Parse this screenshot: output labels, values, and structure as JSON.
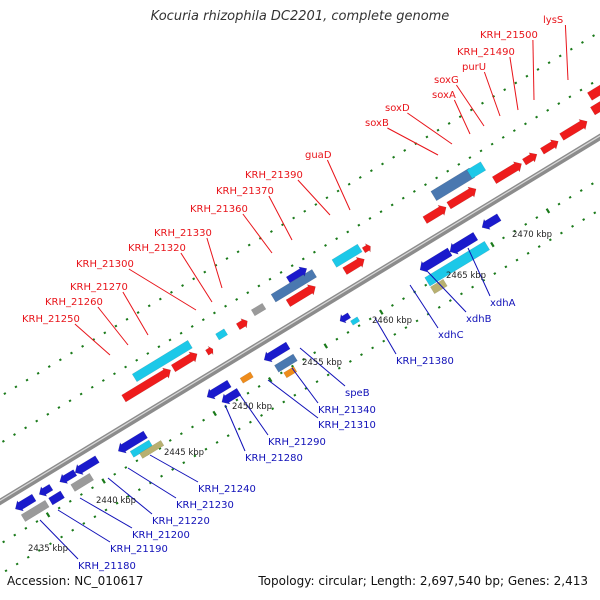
{
  "title": "Kocuria rhizophila DC2201, complete genome",
  "footer": {
    "accession": "Accession: NC_010617",
    "summary": "Topology: circular; Length: 2,697,540 bp; Genes: 2,413"
  },
  "colors": {
    "top_label": "#e8141a",
    "bottom_label": "#1010b8",
    "tick": "#1a7a1a",
    "backbone": "#8c8c8c",
    "red_gene": "#ee1c1c",
    "blue_gene": "#1a1acc",
    "cyan_gene": "#1cc8e8",
    "steel_gene": "#4a78b0",
    "gray_gene": "#9a9a9a",
    "orange_gene": "#ee8c1c"
  },
  "scale_labels": [
    "2435 kbp",
    "2440 kbp",
    "2445 kbp",
    "2450 kbp",
    "2455 kbp",
    "2460 kbp",
    "2465 kbp",
    "2470 kbp"
  ],
  "top_labels": [
    "KRH_21250",
    "KRH_21260",
    "KRH_21270",
    "KRH_21300",
    "KRH_21320",
    "KRH_21330",
    "KRH_21360",
    "KRH_21370",
    "KRH_21390",
    "guaD",
    "soxB",
    "soxD",
    "soxA",
    "soxG",
    "purU",
    "KRH_21490",
    "KRH_21500",
    "lysS"
  ],
  "bottom_labels": [
    "KRH_21180",
    "KRH_21190",
    "KRH_21200",
    "KRH_21220",
    "KRH_21230",
    "KRH_21240",
    "KRH_21280",
    "KRH_21290",
    "KRH_21310",
    "KRH_21340",
    "speB",
    "KRH_21380",
    "xdhC",
    "xdhB",
    "xdhA"
  ]
}
